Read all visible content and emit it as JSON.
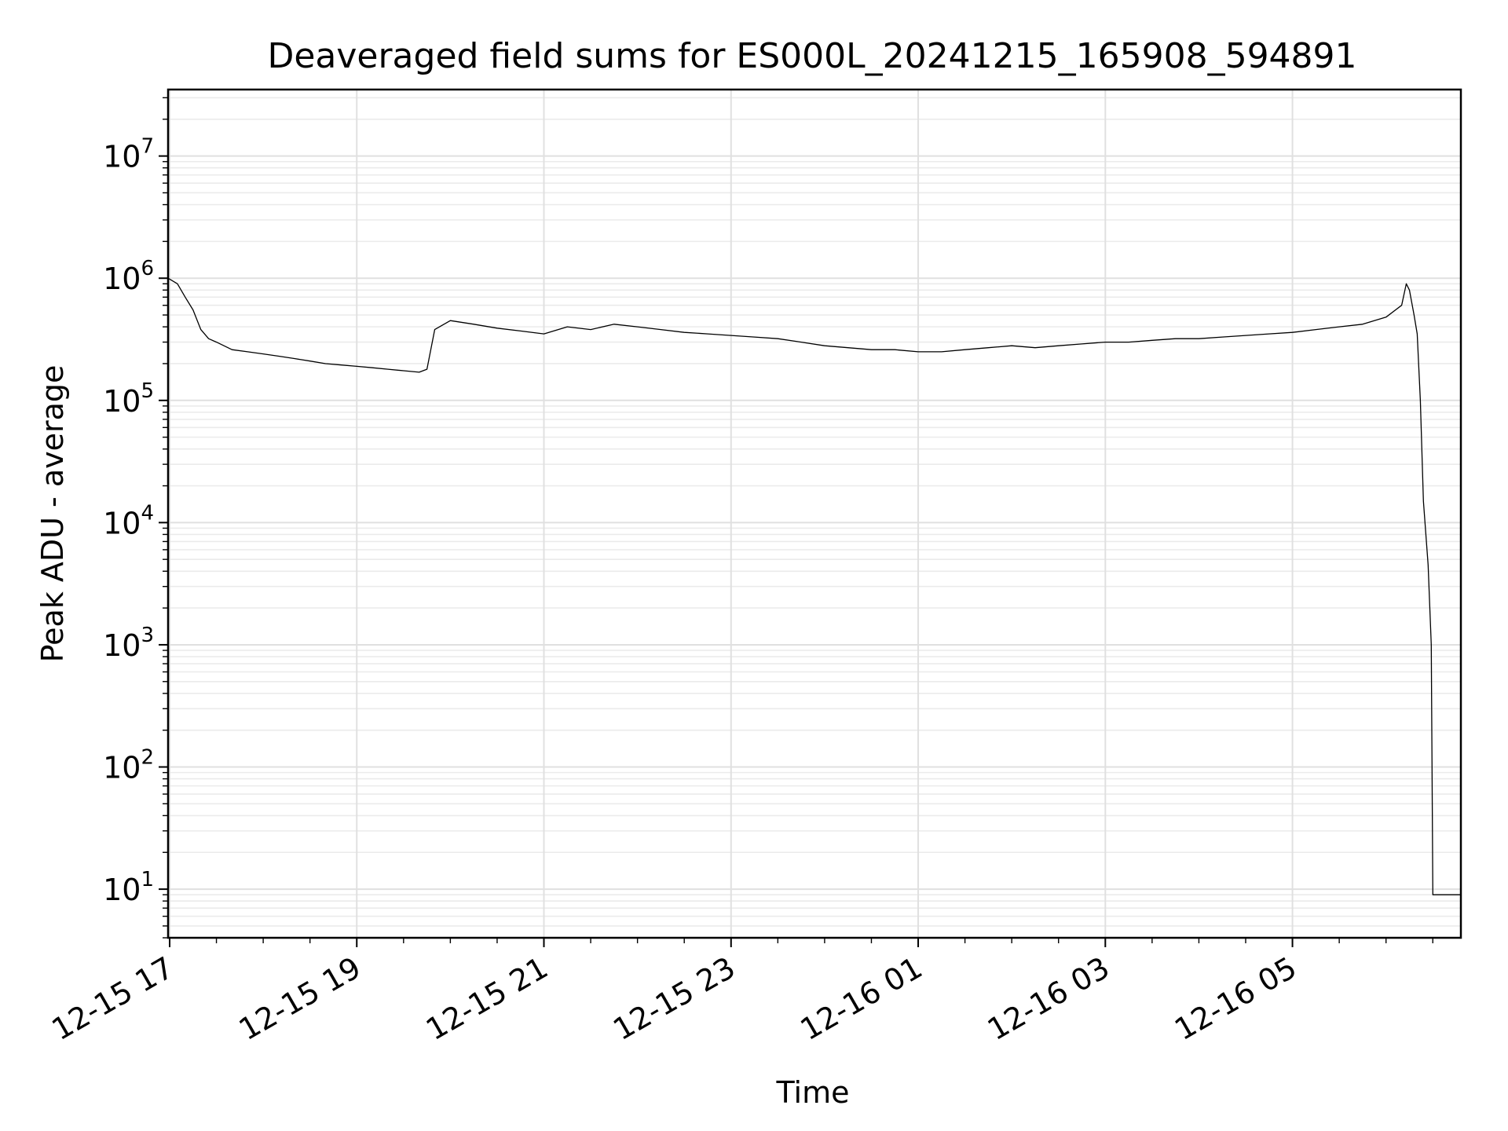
{
  "chart_data": {
    "type": "line",
    "title": "Deaveraged field sums for ES000L_20241215_165908_594891",
    "xlabel": "Time",
    "ylabel": "Peak ADU - average",
    "yscale": "log",
    "ylim": [
      4,
      35000000
    ],
    "xlim": [
      "2024-12-15T16:59:00",
      "2024-12-16T06:48:00"
    ],
    "grid": true,
    "grid_minor": true,
    "line_color": "#000000",
    "x_ticks": [
      {
        "value": "2024-12-15T17:00:00",
        "label": "12-15 17"
      },
      {
        "value": "2024-12-15T19:00:00",
        "label": "12-15 19"
      },
      {
        "value": "2024-12-15T21:00:00",
        "label": "12-15 21"
      },
      {
        "value": "2024-12-15T23:00:00",
        "label": "12-15 23"
      },
      {
        "value": "2024-12-16T01:00:00",
        "label": "12-16 01"
      },
      {
        "value": "2024-12-16T03:00:00",
        "label": "12-16 03"
      },
      {
        "value": "2024-12-16T05:00:00",
        "label": "12-16 05"
      }
    ],
    "y_ticks": [
      {
        "value": 10,
        "base": "10",
        "exp": "1"
      },
      {
        "value": 100,
        "base": "10",
        "exp": "2"
      },
      {
        "value": 1000,
        "base": "10",
        "exp": "3"
      },
      {
        "value": 10000,
        "base": "10",
        "exp": "4"
      },
      {
        "value": 100000,
        "base": "10",
        "exp": "5"
      },
      {
        "value": 1000000,
        "base": "10",
        "exp": "6"
      },
      {
        "value": 10000000,
        "base": "10",
        "exp": "7"
      }
    ],
    "series": [
      {
        "x": [
          "2024-12-15T16:59:00",
          "2024-12-15T17:05:00",
          "2024-12-15T17:10:00",
          "2024-12-15T17:15:00",
          "2024-12-15T17:20:00",
          "2024-12-15T17:25:00",
          "2024-12-15T17:30:00",
          "2024-12-15T17:40:00",
          "2024-12-15T17:50:00",
          "2024-12-15T18:00:00",
          "2024-12-15T18:10:00",
          "2024-12-15T18:20:00",
          "2024-12-15T18:30:00",
          "2024-12-15T18:40:00",
          "2024-12-15T18:50:00",
          "2024-12-15T19:00:00",
          "2024-12-15T19:10:00",
          "2024-12-15T19:20:00",
          "2024-12-15T19:30:00",
          "2024-12-15T19:40:00",
          "2024-12-15T19:45:00",
          "2024-12-15T19:50:00",
          "2024-12-15T20:00:00",
          "2024-12-15T20:15:00",
          "2024-12-15T20:30:00",
          "2024-12-15T20:45:00",
          "2024-12-15T21:00:00",
          "2024-12-15T21:15:00",
          "2024-12-15T21:30:00",
          "2024-12-15T21:45:00",
          "2024-12-15T22:00:00",
          "2024-12-15T22:15:00",
          "2024-12-15T22:30:00",
          "2024-12-15T22:45:00",
          "2024-12-15T23:00:00",
          "2024-12-15T23:15:00",
          "2024-12-15T23:30:00",
          "2024-12-15T23:45:00",
          "2024-12-16T00:00:00",
          "2024-12-16T00:15:00",
          "2024-12-16T00:30:00",
          "2024-12-16T00:45:00",
          "2024-12-16T01:00:00",
          "2024-12-16T01:15:00",
          "2024-12-16T01:30:00",
          "2024-12-16T01:45:00",
          "2024-12-16T02:00:00",
          "2024-12-16T02:15:00",
          "2024-12-16T02:30:00",
          "2024-12-16T02:45:00",
          "2024-12-16T03:00:00",
          "2024-12-16T03:15:00",
          "2024-12-16T03:30:00",
          "2024-12-16T03:45:00",
          "2024-12-16T04:00:00",
          "2024-12-16T04:15:00",
          "2024-12-16T04:30:00",
          "2024-12-16T04:45:00",
          "2024-12-16T05:00:00",
          "2024-12-16T05:15:00",
          "2024-12-16T05:30:00",
          "2024-12-16T05:45:00",
          "2024-12-16T06:00:00",
          "2024-12-16T06:10:00",
          "2024-12-16T06:13:00",
          "2024-12-16T06:15:00",
          "2024-12-16T06:18:00",
          "2024-12-16T06:20:00",
          "2024-12-16T06:22:00",
          "2024-12-16T06:24:00",
          "2024-12-16T06:27:00",
          "2024-12-16T06:29:00",
          "2024-12-16T06:30:00",
          "2024-12-16T06:31:00",
          "2024-12-16T06:35:00",
          "2024-12-16T06:40:00",
          "2024-12-16T06:48:00"
        ],
        "values": [
          1000000,
          900000,
          700000,
          550000,
          380000,
          320000,
          300000,
          260000,
          250000,
          240000,
          230000,
          220000,
          210000,
          200000,
          195000,
          190000,
          185000,
          180000,
          175000,
          170000,
          180000,
          380000,
          450000,
          420000,
          390000,
          370000,
          350000,
          400000,
          380000,
          420000,
          400000,
          380000,
          360000,
          350000,
          340000,
          330000,
          320000,
          300000,
          280000,
          270000,
          260000,
          260000,
          250000,
          250000,
          260000,
          270000,
          280000,
          270000,
          280000,
          290000,
          300000,
          300000,
          310000,
          320000,
          320000,
          330000,
          340000,
          350000,
          360000,
          380000,
          400000,
          420000,
          480000,
          600000,
          900000,
          800000,
          500000,
          350000,
          100000,
          15000,
          4500,
          1000,
          9,
          9,
          9,
          9,
          9
        ]
      }
    ]
  }
}
